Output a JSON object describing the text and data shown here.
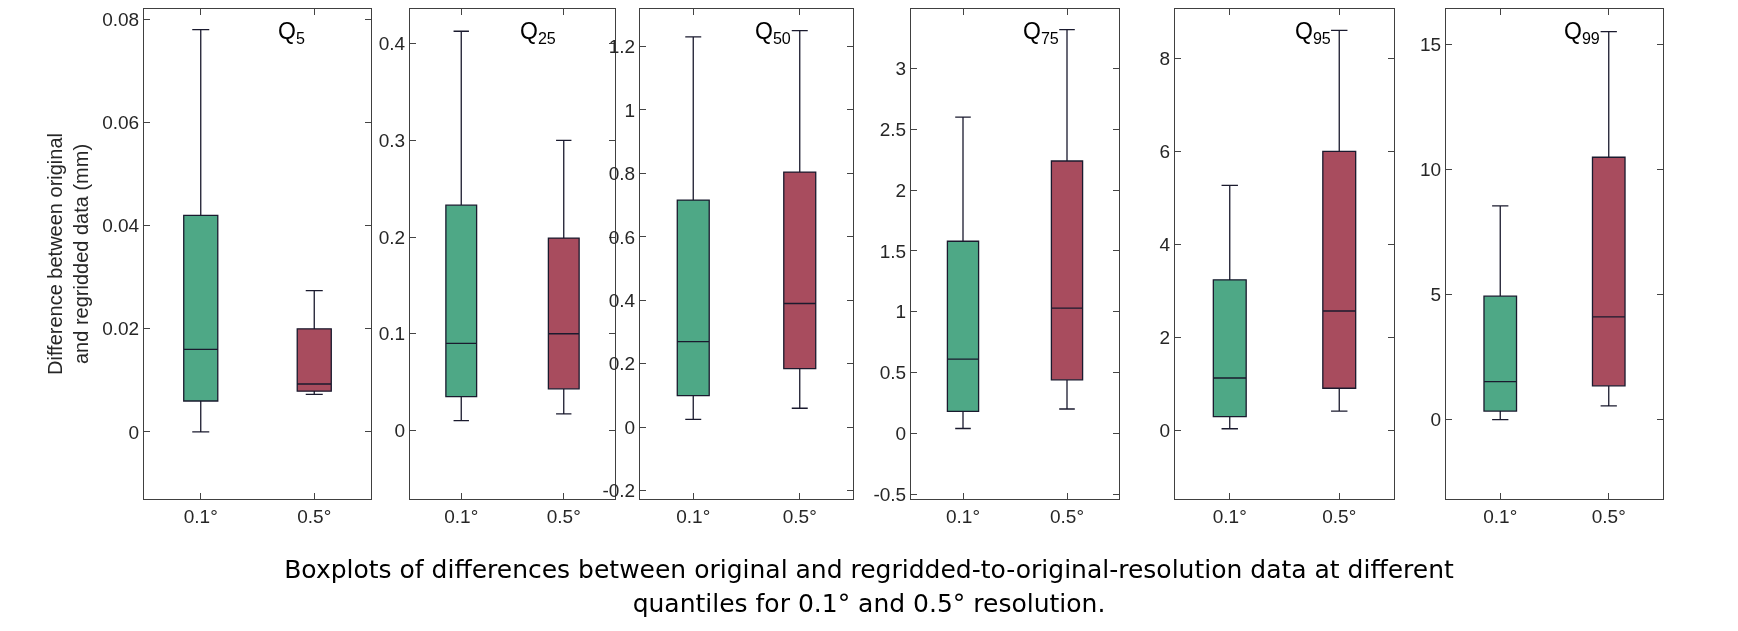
{
  "chart_data": [
    {
      "type": "box",
      "title": "Q$_{5}$",
      "ylabel": "Difference between original\nand regridded data (mm)",
      "categories": [
        "0.1°",
        "0.5°"
      ],
      "colors": [
        "#4ea886",
        "#a84c5e"
      ],
      "ylim": [
        -0.013,
        0.082
      ],
      "yticks": [
        0,
        0.02,
        0.04,
        0.06,
        0.08
      ],
      "grid": false,
      "boxes": [
        {
          "low": 0,
          "q1": 0.006,
          "median": 0.016,
          "q3": 0.042,
          "high": 0.078
        },
        {
          "low": 0.0073,
          "q1": 0.0079,
          "median": 0.0093,
          "q3": 0.02,
          "high": 0.0274
        }
      ],
      "annotations": [
        "Boxplots of differences between original and regridded-to-original-resolution data at different quantiles for 0.1° and 0.5° resolution."
      ]
    },
    {
      "type": "box",
      "title": "Q$_{25}$",
      "categories": [
        "0.1°",
        "0.5°"
      ],
      "colors": [
        "#4ea886",
        "#a84c5e"
      ],
      "ylim": [
        -0.071,
        0.436
      ],
      "yticks": [
        0,
        0.1,
        0.2,
        0.3,
        0.4
      ],
      "grid": false,
      "boxes": [
        {
          "low": 0.01,
          "q1": 0.035,
          "median": 0.09,
          "q3": 0.233,
          "high": 0.413
        },
        {
          "low": 0.017,
          "q1": 0.043,
          "median": 0.1,
          "q3": 0.199,
          "high": 0.3
        }
      ]
    },
    {
      "type": "box",
      "title": "Q$_{50}$",
      "categories": [
        "0.1°",
        "0.5°"
      ],
      "colors": [
        "#4ea886",
        "#a84c5e"
      ],
      "ylim": [
        -0.226,
        1.318
      ],
      "yticks": [
        -0.2,
        0,
        0.2,
        0.4,
        0.6,
        0.8,
        1,
        1.2
      ],
      "grid": false,
      "boxes": [
        {
          "low": 0.025,
          "q1": 0.1,
          "median": 0.27,
          "q3": 0.716,
          "high": 1.23
        },
        {
          "low": 0.06,
          "q1": 0.185,
          "median": 0.39,
          "q3": 0.804,
          "high": 1.25
        }
      ]
    },
    {
      "type": "box",
      "title": "Q$_{75}$",
      "categories": [
        "0.1°",
        "0.5°"
      ],
      "colors": [
        "#4ea886",
        "#a84c5e"
      ],
      "ylim": [
        -0.54,
        3.49
      ],
      "yticks": [
        -0.5,
        0,
        0.5,
        1,
        1.5,
        2,
        2.5,
        3
      ],
      "grid": false,
      "boxes": [
        {
          "low": 0.04,
          "q1": 0.18,
          "median": 0.61,
          "q3": 1.58,
          "high": 2.6
        },
        {
          "low": 0.2,
          "q1": 0.44,
          "median": 1.03,
          "q3": 2.24,
          "high": 3.32
        }
      ]
    },
    {
      "type": "box",
      "title": "Q$_{95}$",
      "categories": [
        "0.1°",
        "0.5°"
      ],
      "colors": [
        "#4ea886",
        "#a84c5e"
      ],
      "ylim": [
        -1.47,
        9.06
      ],
      "yticks": [
        0,
        2,
        4,
        6,
        8
      ],
      "grid": false,
      "boxes": [
        {
          "low": 0.04,
          "q1": 0.3,
          "median": 1.13,
          "q3": 3.24,
          "high": 5.27
        },
        {
          "low": 0.42,
          "q1": 0.91,
          "median": 2.57,
          "q3": 6.0,
          "high": 8.6
        }
      ]
    },
    {
      "type": "box",
      "title": "Q$_{99}$",
      "categories": [
        "0.1°",
        "0.5°"
      ],
      "colors": [
        "#4ea886",
        "#a84c5e"
      ],
      "ylim": [
        -3.17,
        16.4
      ],
      "yticks": [
        0,
        5,
        10,
        15
      ],
      "grid": false,
      "boxes": [
        {
          "low": 0,
          "q1": 0.34,
          "median": 1.52,
          "q3": 4.93,
          "high": 8.54
        },
        {
          "low": 0.55,
          "q1": 1.35,
          "median": 4.1,
          "q3": 10.48,
          "high": 15.5
        }
      ]
    }
  ]
}
